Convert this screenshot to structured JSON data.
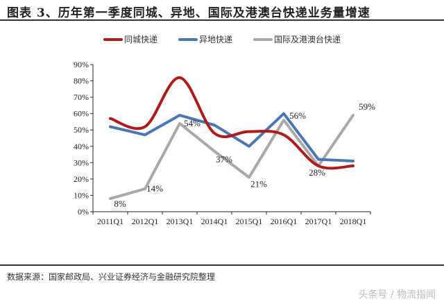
{
  "header": {
    "title": "图表 3、历年第一季度同城、异地、国际及港澳台快递业务量增速"
  },
  "footer": {
    "source": "数据来源：国家邮政局、兴业证券经济与金融研究院整理",
    "watermark": "头条号 / 物流指闻"
  },
  "chart_data": {
    "type": "line",
    "title": "图表 3、历年第一季度同城、异地、国际及港澳台快递业务量增速",
    "categories": [
      "2011Q1",
      "2012Q1",
      "2013Q1",
      "2014Q1",
      "2015Q1",
      "2016Q1",
      "2017Q1",
      "2018Q1"
    ],
    "series": [
      {
        "name": "同城快递",
        "color": "#b11a1a",
        "values": [
          57,
          52,
          82,
          48,
          49,
          47,
          28,
          28
        ]
      },
      {
        "name": "异地快递",
        "color": "#4a76b5",
        "values": [
          52,
          47,
          59,
          53,
          40,
          60,
          32,
          31
        ]
      },
      {
        "name": "国际及港澳台快递",
        "color": "#a9a9a9",
        "values": [
          8,
          14,
          54,
          37,
          21,
          56,
          28,
          59
        ]
      }
    ],
    "data_labels": {
      "series": "国际及港澳台快递",
      "labels": [
        "8%",
        "14%",
        "54%",
        "37%",
        "21%",
        "56%",
        "28%",
        "59%"
      ]
    },
    "yticks": [
      "0%",
      "10%",
      "20%",
      "30%",
      "40%",
      "50%",
      "60%",
      "70%",
      "80%",
      "90%"
    ],
    "ylim": [
      0,
      90
    ],
    "xlabel": "",
    "ylabel": "",
    "legend_position": "top",
    "grid": false
  }
}
